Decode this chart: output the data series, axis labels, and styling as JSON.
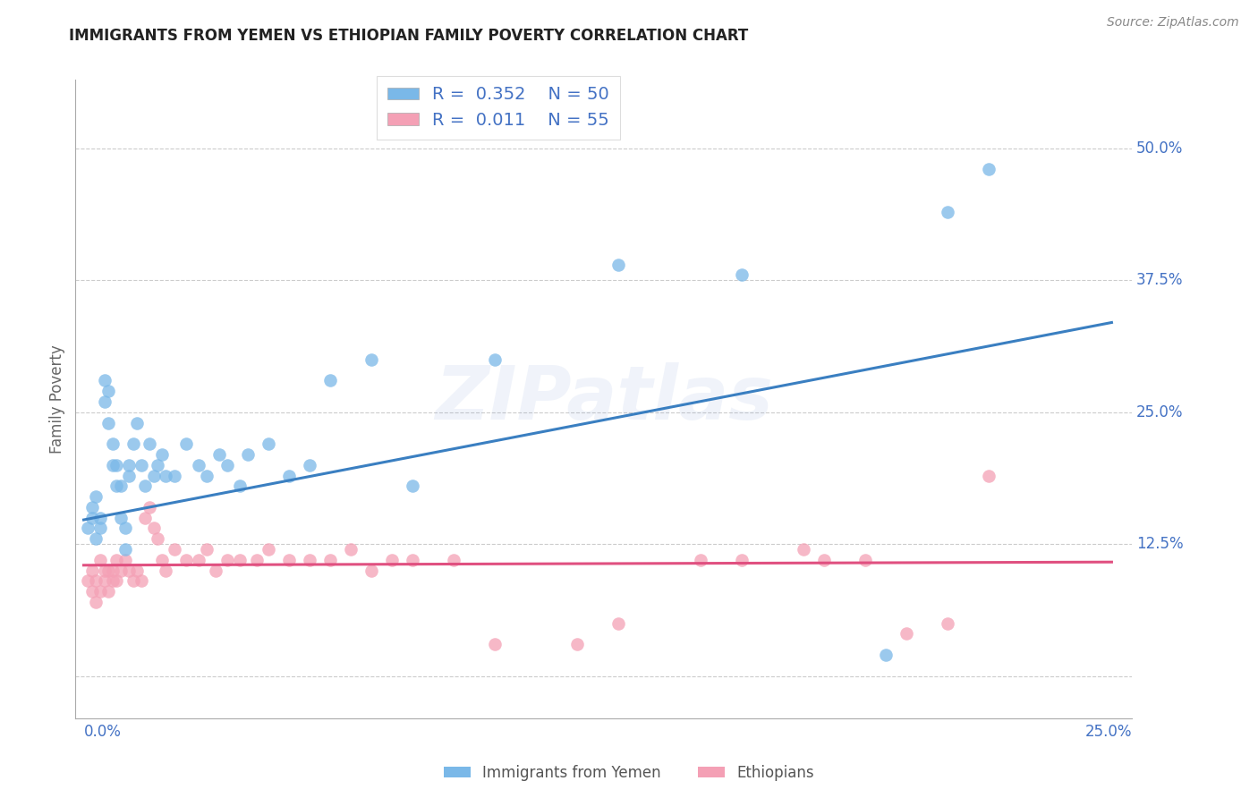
{
  "title": "IMMIGRANTS FROM YEMEN VS ETHIOPIAN FAMILY POVERTY CORRELATION CHART",
  "source": "Source: ZipAtlas.com",
  "ylabel": "Family Poverty",
  "xlabel_blue": "Immigrants from Yemen",
  "xlabel_pink": "Ethiopians",
  "watermark": "ZIPatlas",
  "legend_blue_r": "0.352",
  "legend_blue_n": "50",
  "legend_pink_r": "0.011",
  "legend_pink_n": "55",
  "xlim": [
    -0.002,
    0.255
  ],
  "ylim": [
    -0.04,
    0.565
  ],
  "yticks": [
    0.0,
    0.125,
    0.25,
    0.375,
    0.5
  ],
  "ytick_labels": [
    "",
    "12.5%",
    "25.0%",
    "37.5%",
    "50.0%"
  ],
  "blue_color": "#7ab8e8",
  "pink_color": "#f4a0b5",
  "blue_line_color": "#3a7fc1",
  "pink_line_color": "#e05080",
  "tick_label_color": "#4472C4",
  "grid_color": "#cccccc",
  "background_color": "#ffffff",
  "blue_scatter_x": [
    0.001,
    0.002,
    0.002,
    0.003,
    0.003,
    0.004,
    0.004,
    0.005,
    0.005,
    0.006,
    0.006,
    0.007,
    0.007,
    0.008,
    0.008,
    0.009,
    0.009,
    0.01,
    0.01,
    0.011,
    0.011,
    0.012,
    0.013,
    0.014,
    0.015,
    0.016,
    0.017,
    0.018,
    0.019,
    0.02,
    0.022,
    0.025,
    0.028,
    0.03,
    0.033,
    0.035,
    0.038,
    0.04,
    0.045,
    0.05,
    0.055,
    0.06,
    0.07,
    0.08,
    0.1,
    0.13,
    0.16,
    0.195,
    0.21,
    0.22
  ],
  "blue_scatter_y": [
    0.14,
    0.16,
    0.15,
    0.17,
    0.13,
    0.15,
    0.14,
    0.26,
    0.28,
    0.27,
    0.24,
    0.22,
    0.2,
    0.18,
    0.2,
    0.18,
    0.15,
    0.14,
    0.12,
    0.2,
    0.19,
    0.22,
    0.24,
    0.2,
    0.18,
    0.22,
    0.19,
    0.2,
    0.21,
    0.19,
    0.19,
    0.22,
    0.2,
    0.19,
    0.21,
    0.2,
    0.18,
    0.21,
    0.22,
    0.19,
    0.2,
    0.28,
    0.3,
    0.18,
    0.3,
    0.39,
    0.38,
    0.02,
    0.44,
    0.48
  ],
  "pink_scatter_x": [
    0.001,
    0.002,
    0.002,
    0.003,
    0.003,
    0.004,
    0.004,
    0.005,
    0.005,
    0.006,
    0.006,
    0.007,
    0.007,
    0.008,
    0.008,
    0.009,
    0.01,
    0.011,
    0.012,
    0.013,
    0.014,
    0.015,
    0.016,
    0.017,
    0.018,
    0.019,
    0.02,
    0.022,
    0.025,
    0.028,
    0.03,
    0.032,
    0.035,
    0.038,
    0.042,
    0.045,
    0.05,
    0.055,
    0.06,
    0.065,
    0.07,
    0.075,
    0.08,
    0.09,
    0.1,
    0.12,
    0.13,
    0.15,
    0.16,
    0.175,
    0.18,
    0.19,
    0.2,
    0.21,
    0.22
  ],
  "pink_scatter_y": [
    0.09,
    0.08,
    0.1,
    0.09,
    0.07,
    0.08,
    0.11,
    0.1,
    0.09,
    0.1,
    0.08,
    0.1,
    0.09,
    0.11,
    0.09,
    0.1,
    0.11,
    0.1,
    0.09,
    0.1,
    0.09,
    0.15,
    0.16,
    0.14,
    0.13,
    0.11,
    0.1,
    0.12,
    0.11,
    0.11,
    0.12,
    0.1,
    0.11,
    0.11,
    0.11,
    0.12,
    0.11,
    0.11,
    0.11,
    0.12,
    0.1,
    0.11,
    0.11,
    0.11,
    0.03,
    0.03,
    0.05,
    0.11,
    0.11,
    0.12,
    0.11,
    0.11,
    0.04,
    0.05,
    0.19
  ],
  "blue_line_x": [
    0.0,
    0.25
  ],
  "blue_line_y": [
    0.148,
    0.335
  ],
  "pink_line_x": [
    0.0,
    0.25
  ],
  "pink_line_y": [
    0.105,
    0.108
  ]
}
